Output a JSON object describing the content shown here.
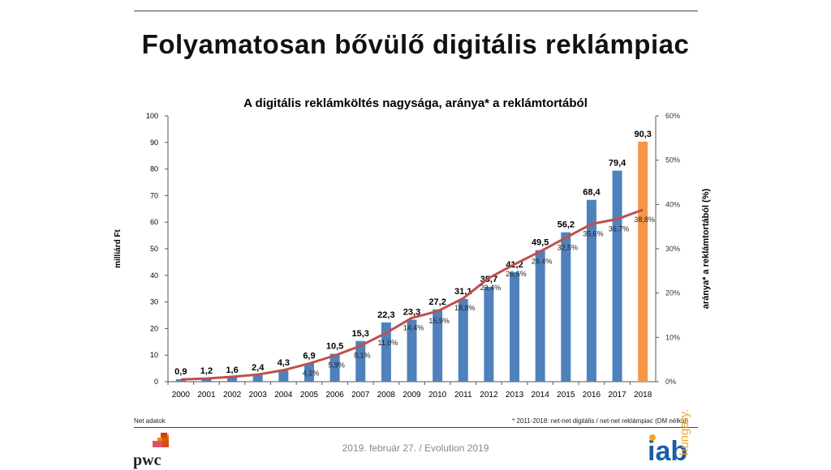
{
  "slide_title": "Folyamatosan bővülő digitális reklámpiac",
  "chart_data": {
    "type": "bar+line",
    "title": "A digitális reklámköltés nagysága, aránya* a reklámtortából",
    "ylabel": "milliárd Ft",
    "y2label": "aránya* a reklámtortából (%)",
    "ylim": [
      0,
      100
    ],
    "yticks": [
      0,
      10,
      20,
      30,
      40,
      50,
      60,
      70,
      80,
      90,
      100
    ],
    "y2lim": [
      0,
      60
    ],
    "y2ticks": [
      "0%",
      "10%",
      "20%",
      "30%",
      "40%",
      "50%",
      "60%"
    ],
    "categories": [
      "2000",
      "2001",
      "2002",
      "2003",
      "2004",
      "2005",
      "2006",
      "2007",
      "2008",
      "2009",
      "2010",
      "2011",
      "2012",
      "2013",
      "2014",
      "2015",
      "2016",
      "2017",
      "2018"
    ],
    "bar_values": [
      0.9,
      1.2,
      1.6,
      2.4,
      4.3,
      6.9,
      10.5,
      15.3,
      22.3,
      23.3,
      27.2,
      31.1,
      35.7,
      41.2,
      49.5,
      56.2,
      68.4,
      79.4,
      90.3
    ],
    "bar_labels": [
      "0,9",
      "1,2",
      "1,6",
      "2,4",
      "4,3",
      "6,9",
      "10,5",
      "15,3",
      "22,3",
      "23,3",
      "27,2",
      "31,1",
      "35,7",
      "41,2",
      "49,5",
      "56,2",
      "68,4",
      "79,4",
      "90,3"
    ],
    "line_values": [
      0.5,
      0.7,
      1.1,
      1.6,
      2.6,
      4.1,
      5.9,
      8.1,
      11.0,
      14.4,
      15.9,
      18.8,
      23.4,
      26.5,
      29.4,
      32.5,
      35.6,
      36.7,
      38.8
    ],
    "line_labels": [
      null,
      null,
      null,
      null,
      null,
      "4,1%",
      "5,9%",
      "8,1%",
      "11,0%",
      "14,4%",
      "15,9%",
      "18,8%",
      "23,4%",
      "26,5%",
      "29,4%",
      "32,5%",
      "35,6%",
      "36,7%",
      "38,8%"
    ],
    "colors": {
      "bar": "#4f81bd",
      "bar_highlight": "#f79646",
      "line": "#c0504d"
    },
    "highlight_index": 18
  },
  "note_left": "Net adatok",
  "note_right": "* 2011-2018: net-net digitális / net-net reklámpiac (DM nélkül)",
  "footer": "2019. február 27. /  Evolution 2019",
  "logos": {
    "left": "pwc",
    "right": "iab",
    "right_sub": "hungary."
  }
}
